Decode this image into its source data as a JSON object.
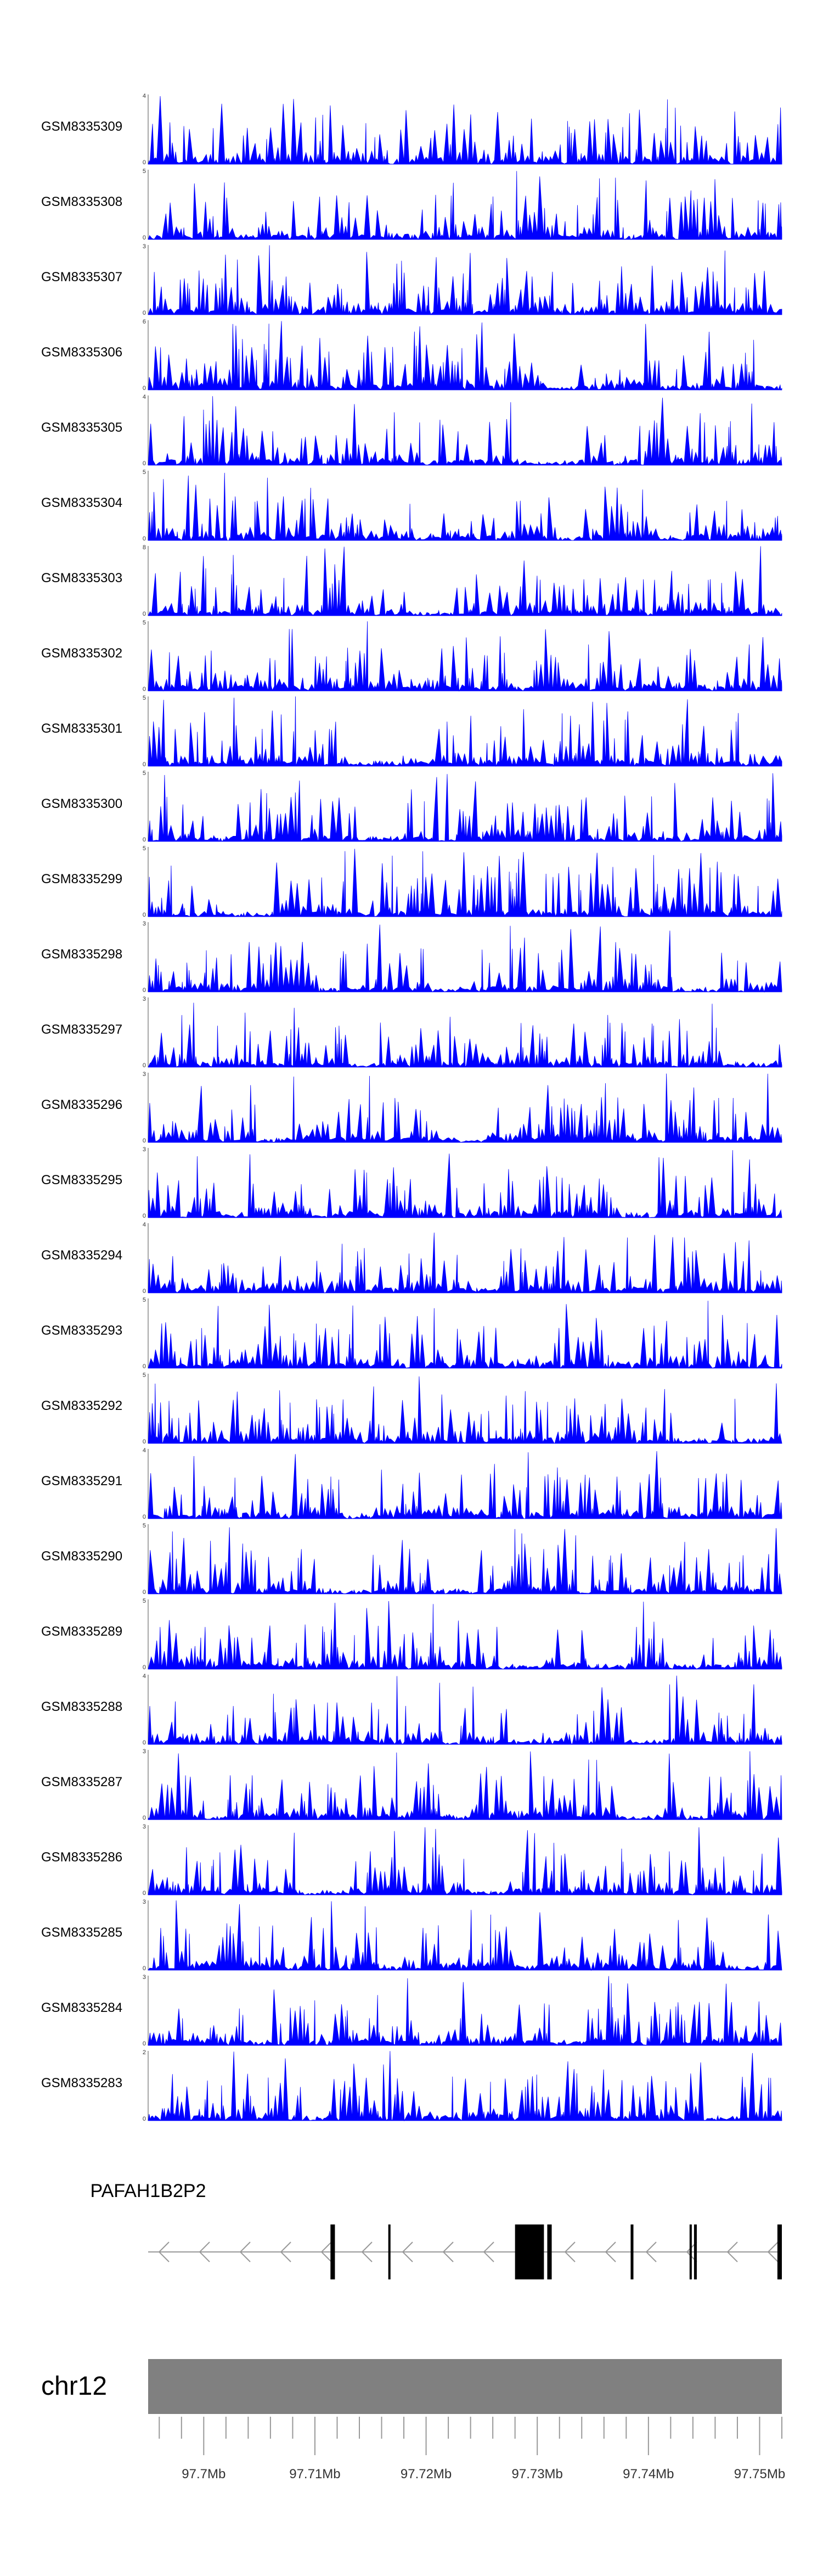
{
  "chart_data": {
    "type": "area",
    "title": "",
    "xlabel": "",
    "ylabel": "",
    "chromosome": "chr12",
    "xlim": [
      97695000,
      97752000
    ],
    "x_ticks": [
      "97.7Mb",
      "97.71Mb",
      "97.72Mb",
      "97.73Mb",
      "97.74Mb",
      "97.75Mb"
    ],
    "x_tick_values": [
      97700000,
      97710000,
      97720000,
      97730000,
      97740000,
      97750000
    ],
    "series_color": "#0000ff",
    "tracks": [
      {
        "name": "GSM8335309",
        "ymax": "4",
        "ymin": "0",
        "seed": 11
      },
      {
        "name": "GSM8335308",
        "ymax": "5",
        "ymin": "0",
        "seed": 23
      },
      {
        "name": "GSM8335307",
        "ymax": "3",
        "ymin": "0",
        "seed": 37
      },
      {
        "name": "GSM8335306",
        "ymax": "6",
        "ymin": "0",
        "seed": 41
      },
      {
        "name": "GSM8335305",
        "ymax": "4",
        "ymin": "0",
        "seed": 53
      },
      {
        "name": "GSM8335304",
        "ymax": "5",
        "ymin": "0",
        "seed": 67
      },
      {
        "name": "GSM8335303",
        "ymax": "8",
        "ymin": "0",
        "seed": 71
      },
      {
        "name": "GSM8335302",
        "ymax": "5",
        "ymin": "0",
        "seed": 83
      },
      {
        "name": "GSM8335301",
        "ymax": "5",
        "ymin": "0",
        "seed": 97
      },
      {
        "name": "GSM8335300",
        "ymax": "5",
        "ymin": "0",
        "seed": 101
      },
      {
        "name": "GSM8335299",
        "ymax": "5",
        "ymin": "0",
        "seed": 113
      },
      {
        "name": "GSM8335298",
        "ymax": "3",
        "ymin": "0",
        "seed": 127
      },
      {
        "name": "GSM8335297",
        "ymax": "3",
        "ymin": "0",
        "seed": 131
      },
      {
        "name": "GSM8335296",
        "ymax": "3",
        "ymin": "0",
        "seed": 149
      },
      {
        "name": "GSM8335295",
        "ymax": "3",
        "ymin": "0",
        "seed": 157
      },
      {
        "name": "GSM8335294",
        "ymax": "4",
        "ymin": "0",
        "seed": 163
      },
      {
        "name": "GSM8335293",
        "ymax": "5",
        "ymin": "0",
        "seed": 179
      },
      {
        "name": "GSM8335292",
        "ymax": "5",
        "ymin": "0",
        "seed": 181
      },
      {
        "name": "GSM8335291",
        "ymax": "4",
        "ymin": "0",
        "seed": 193
      },
      {
        "name": "GSM8335290",
        "ymax": "5",
        "ymin": "0",
        "seed": 199
      },
      {
        "name": "GSM8335289",
        "ymax": "5",
        "ymin": "0",
        "seed": 211
      },
      {
        "name": "GSM8335288",
        "ymax": "4",
        "ymin": "0",
        "seed": 223
      },
      {
        "name": "GSM8335287",
        "ymax": "3",
        "ymin": "0",
        "seed": 227
      },
      {
        "name": "GSM8335286",
        "ymax": "3",
        "ymin": "0",
        "seed": 239
      },
      {
        "name": "GSM8335285",
        "ymax": "3",
        "ymin": "0",
        "seed": 241
      },
      {
        "name": "GSM8335284",
        "ymax": "3",
        "ymin": "0",
        "seed": 251
      },
      {
        "name": "GSM8335283",
        "ymax": "2",
        "ymin": "0",
        "seed": 257
      }
    ],
    "gene": {
      "label": "PAFAH1B2P2",
      "strand": "-",
      "start": 97695000,
      "end": 97752000,
      "exons": [
        [
          97711400,
          97711800
        ],
        [
          97716600,
          97716800
        ],
        [
          97728000,
          97730600
        ],
        [
          97730900,
          97731300
        ],
        [
          97738400,
          97738650
        ],
        [
          97743700,
          97743900
        ],
        [
          97744100,
          97744350
        ],
        [
          97751600,
          97752000
        ]
      ]
    }
  }
}
